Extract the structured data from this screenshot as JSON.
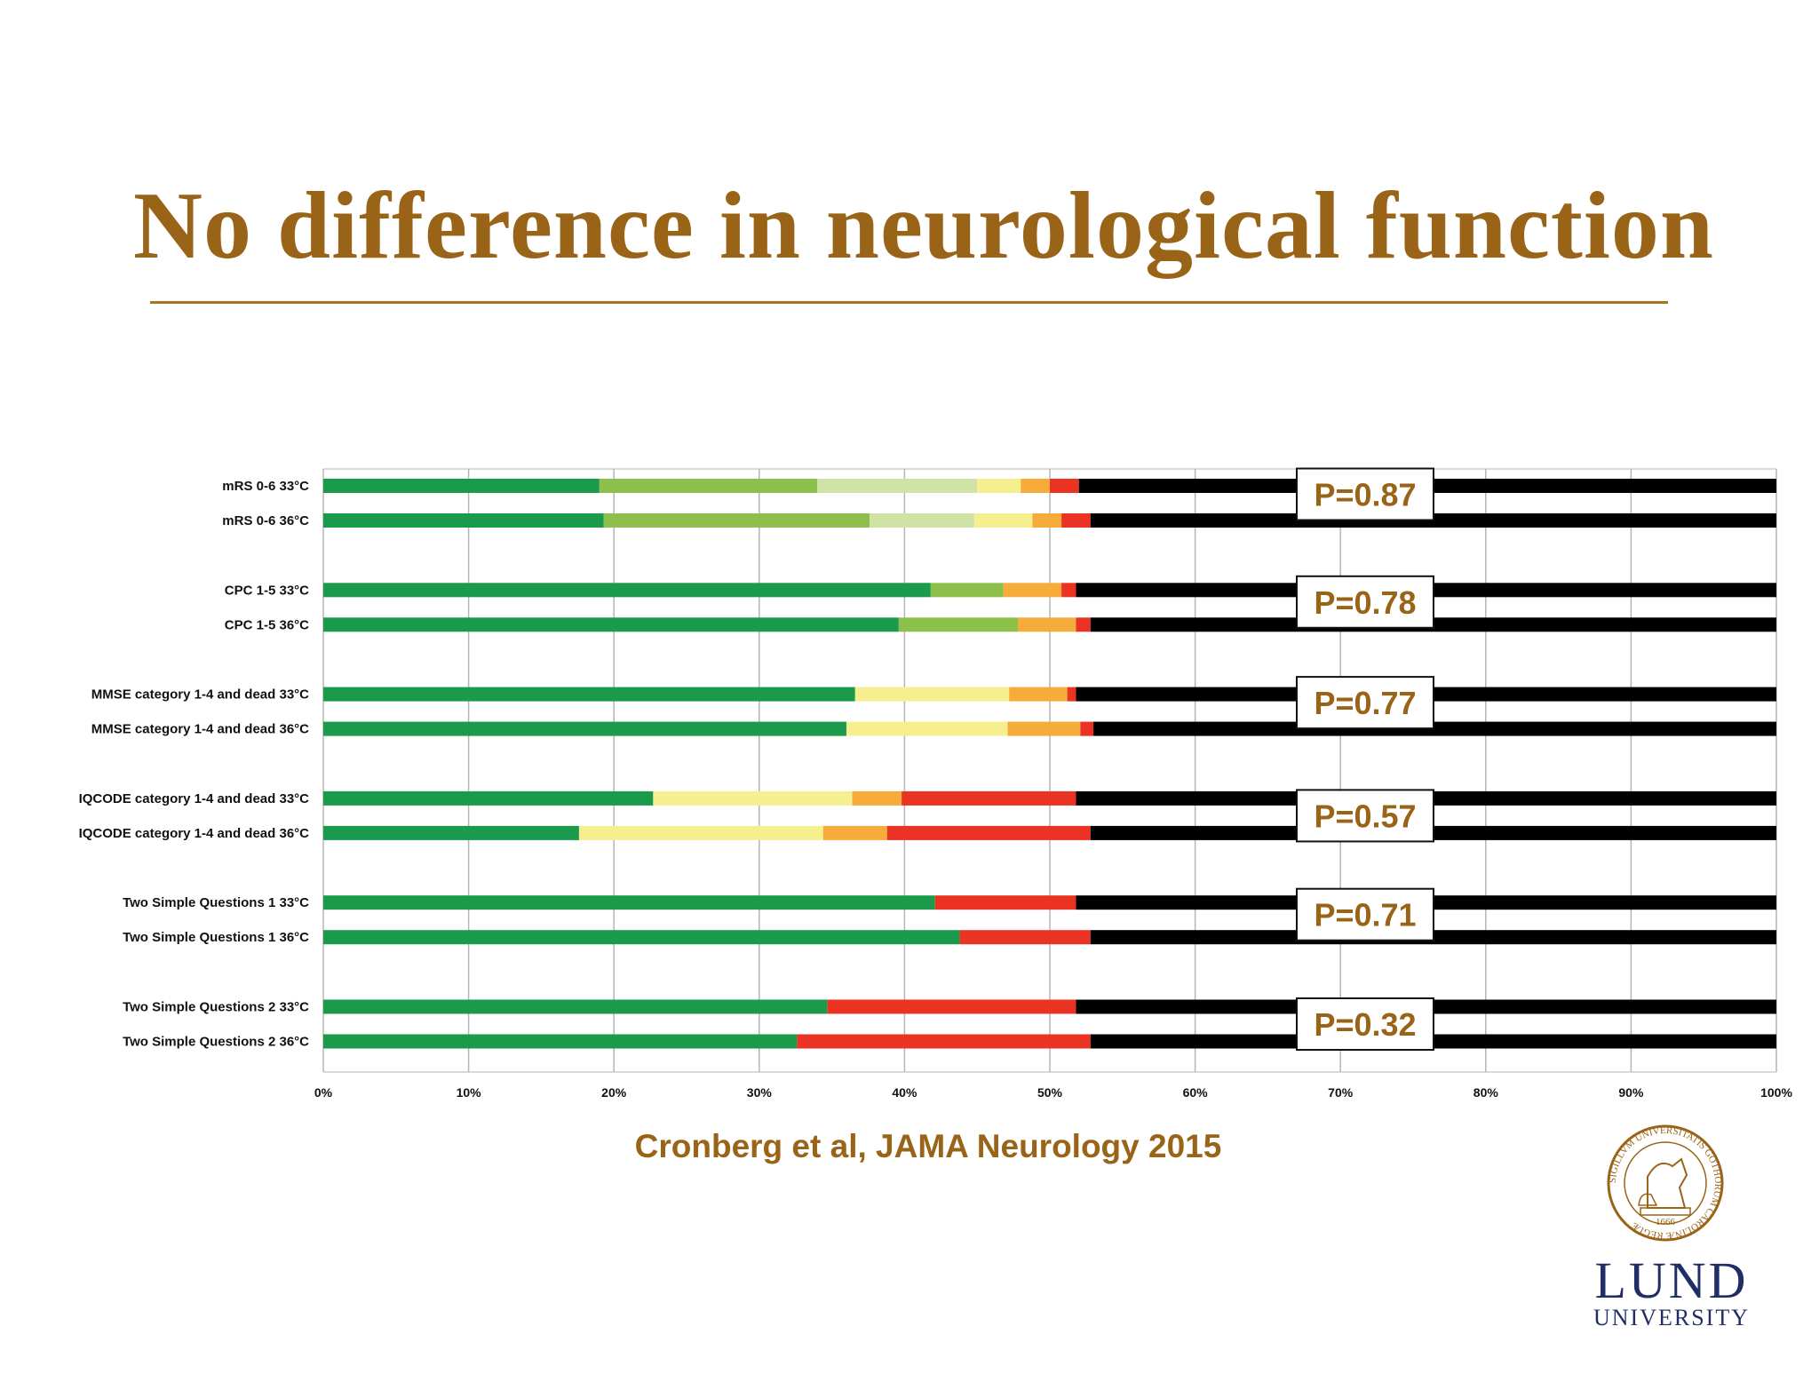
{
  "title": "No difference in neurological function",
  "citation": "Cronberg et al, JAMA Neurology 2015",
  "logo": {
    "word": "LUND",
    "subtitle": "UNIVERSITY",
    "seal_year": "1666",
    "seal_text": "SIGILLVM UNIVERSITATIS GOTHORUM CAROLINÆ REGIÆ"
  },
  "colors": {
    "accent": "#9a6418",
    "darkgreen": "#1a9a4a",
    "green": "#8cc04b",
    "lightgreen": "#cfe3a5",
    "yellow": "#f6ef8f",
    "orange": "#f6ac3a",
    "red": "#ea3323",
    "black": "#000000"
  },
  "chart_data": {
    "type": "bar",
    "stacked": true,
    "orientation": "horizontal",
    "xlim": [
      0,
      100
    ],
    "x_ticks": [
      "0%",
      "10%",
      "20%",
      "30%",
      "40%",
      "50%",
      "60%",
      "70%",
      "80%",
      "90%",
      "100%"
    ],
    "grid": true,
    "groups": [
      {
        "p_value": "P=0.87",
        "rows": [
          {
            "label": "mRS 0-6 33°C",
            "segments": [
              {
                "color": "darkgreen",
                "value": 19
              },
              {
                "color": "green",
                "value": 15
              },
              {
                "color": "lightgreen",
                "value": 11
              },
              {
                "color": "yellow",
                "value": 3
              },
              {
                "color": "orange",
                "value": 2
              },
              {
                "color": "red",
                "value": 2
              },
              {
                "color": "black",
                "value": 48
              }
            ]
          },
          {
            "label": "mRS 0-6 36°C",
            "segments": [
              {
                "color": "darkgreen",
                "value": 19.3
              },
              {
                "color": "green",
                "value": 18.3
              },
              {
                "color": "lightgreen",
                "value": 7.2
              },
              {
                "color": "yellow",
                "value": 4
              },
              {
                "color": "orange",
                "value": 2
              },
              {
                "color": "red",
                "value": 2
              },
              {
                "color": "black",
                "value": 47.2
              }
            ]
          }
        ]
      },
      {
        "p_value": "P=0.78",
        "rows": [
          {
            "label": "CPC 1-5 33°C",
            "segments": [
              {
                "color": "darkgreen",
                "value": 41.8
              },
              {
                "color": "green",
                "value": 5
              },
              {
                "color": "orange",
                "value": 4
              },
              {
                "color": "red",
                "value": 1
              },
              {
                "color": "black",
                "value": 48.2
              }
            ]
          },
          {
            "label": "CPC 1-5 36°C",
            "segments": [
              {
                "color": "darkgreen",
                "value": 39.6
              },
              {
                "color": "green",
                "value": 8.2
              },
              {
                "color": "orange",
                "value": 4
              },
              {
                "color": "red",
                "value": 1
              },
              {
                "color": "black",
                "value": 47.2
              }
            ]
          }
        ]
      },
      {
        "p_value": "P=0.77",
        "rows": [
          {
            "label": "MMSE category 1-4 and dead 33°C",
            "segments": [
              {
                "color": "darkgreen",
                "value": 36.6
              },
              {
                "color": "yellow",
                "value": 10.6
              },
              {
                "color": "orange",
                "value": 4
              },
              {
                "color": "red",
                "value": 0.6
              },
              {
                "color": "black",
                "value": 48.2
              }
            ]
          },
          {
            "label": "MMSE category 1-4 and dead 36°C",
            "segments": [
              {
                "color": "darkgreen",
                "value": 36
              },
              {
                "color": "yellow",
                "value": 11.1
              },
              {
                "color": "orange",
                "value": 5
              },
              {
                "color": "red",
                "value": 0.9
              },
              {
                "color": "black",
                "value": 47
              }
            ]
          }
        ]
      },
      {
        "p_value": "P=0.57",
        "rows": [
          {
            "label": "IQCODE category 1-4 and dead 33°C",
            "segments": [
              {
                "color": "darkgreen",
                "value": 22.7
              },
              {
                "color": "yellow",
                "value": 13.7
              },
              {
                "color": "orange",
                "value": 3.4
              },
              {
                "color": "red",
                "value": 12
              },
              {
                "color": "black",
                "value": 48.2
              }
            ]
          },
          {
            "label": "IQCODE category 1-4 and dead 36°C",
            "segments": [
              {
                "color": "darkgreen",
                "value": 17.6
              },
              {
                "color": "yellow",
                "value": 16.8
              },
              {
                "color": "orange",
                "value": 4.4
              },
              {
                "color": "red",
                "value": 14
              },
              {
                "color": "black",
                "value": 47.2
              }
            ]
          }
        ]
      },
      {
        "p_value": "P=0.71",
        "rows": [
          {
            "label": "Two Simple Questions 1 33°C",
            "segments": [
              {
                "color": "darkgreen",
                "value": 42.1
              },
              {
                "color": "red",
                "value": 9.7
              },
              {
                "color": "black",
                "value": 48.2
              }
            ]
          },
          {
            "label": "Two Simple Questions 1 36°C",
            "segments": [
              {
                "color": "darkgreen",
                "value": 43.8
              },
              {
                "color": "red",
                "value": 9
              },
              {
                "color": "black",
                "value": 47.2
              }
            ]
          }
        ]
      },
      {
        "p_value": "P=0.32",
        "rows": [
          {
            "label": "Two Simple Questions 2 33°C",
            "segments": [
              {
                "color": "darkgreen",
                "value": 34.7
              },
              {
                "color": "red",
                "value": 17.1
              },
              {
                "color": "black",
                "value": 48.2
              }
            ]
          },
          {
            "label": "Two Simple Questions 2 36°C",
            "segments": [
              {
                "color": "darkgreen",
                "value": 32.6
              },
              {
                "color": "red",
                "value": 20.2
              },
              {
                "color": "black",
                "value": 47.2
              }
            ]
          }
        ]
      }
    ]
  }
}
